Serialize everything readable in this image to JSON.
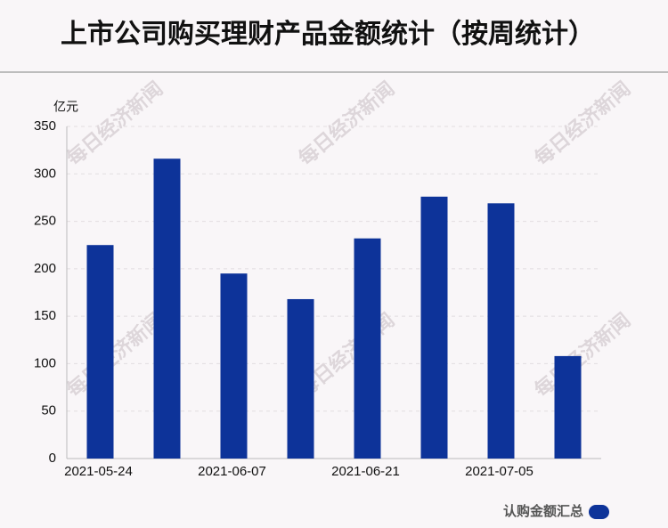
{
  "chart_data": {
    "type": "bar",
    "title": "上市公司购买理财产品金额统计（按周统计）",
    "y_label": "亿元",
    "watermark": "每日经济新闻",
    "categories": [
      "2021-05-24",
      null,
      "2021-06-07",
      null,
      "2021-06-21",
      null,
      "2021-07-05",
      null
    ],
    "series": [
      {
        "name": "认购金额汇总",
        "color": "#0d3399",
        "values": [
          225,
          316,
          195,
          168,
          232,
          276,
          269,
          108
        ]
      }
    ],
    "ylim": [
      0,
      350
    ],
    "yticks": [
      0,
      50,
      100,
      150,
      200,
      250,
      300,
      350
    ],
    "grid": true,
    "legend": "bottom-right"
  }
}
